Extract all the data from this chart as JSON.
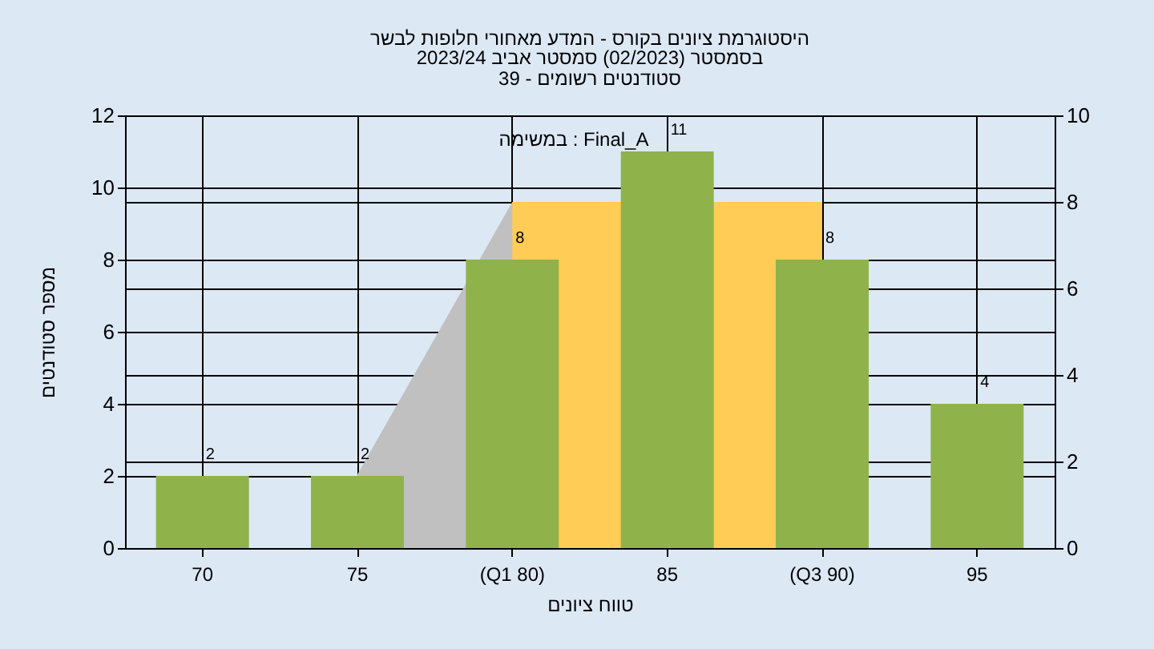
{
  "chart_data": {
    "type": "bar",
    "title": "היסטוגרמת ציונים בקורס - המדע מאחורי חלופות לבשר",
    "subtitle": "בסמסטר  (02/2023)  סמסטר אביב 2023/24\nסטודנטים רשומים - 39",
    "xlabel": "טווח ציונים",
    "ylabel": "מספר סטודנטים",
    "categories": [
      "70",
      "75",
      "(Q1 80)",
      "85",
      "(Q3 90)",
      "95"
    ],
    "series": [
      {
        "type": "area",
        "axis": "y2",
        "color": "#c0c0c0",
        "values": [
          null,
          1.7,
          8,
          null,
          8,
          null
        ]
      },
      {
        "type": "area",
        "axis": "y2",
        "color": "#ffcc55",
        "values": [
          null,
          null,
          8,
          null,
          8,
          null
        ]
      },
      {
        "color": "#8fb34a",
        "values": [
          2,
          2,
          8,
          11,
          8,
          4
        ],
        "value_labels": [
          "2",
          "2",
          "8",
          "11",
          "8",
          "4"
        ]
      }
    ],
    "annotations": [
      "במשימה : Final_A"
    ],
    "ylim": [
      0,
      12
    ],
    "yticks": [
      0,
      2,
      4,
      6,
      8,
      10,
      12
    ],
    "y2lim": [
      0,
      10
    ],
    "y2ticks": [
      0,
      2,
      4,
      6,
      8,
      10
    ],
    "grid": true
  }
}
